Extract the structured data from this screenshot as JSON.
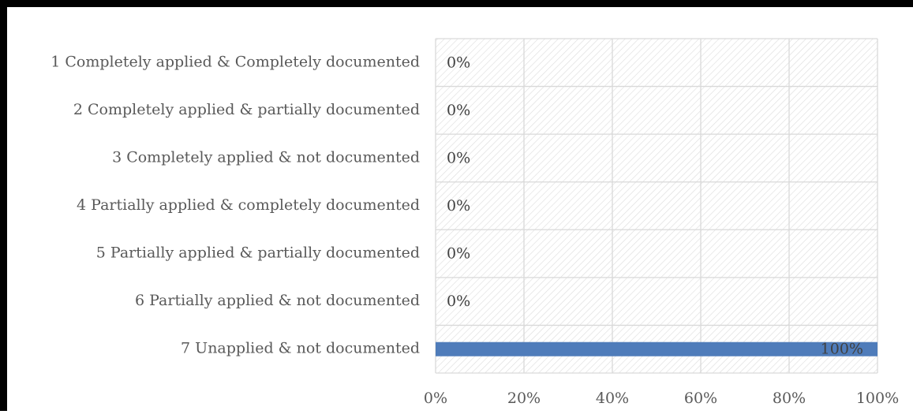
{
  "chart_data": {
    "type": "bar",
    "orientation": "horizontal",
    "categories": [
      "1 Completely applied & Completely documented",
      "2 Completely applied & partially documented",
      "3 Completely applied & not documented",
      "4 Partially applied & completely documented",
      "5 Partially applied & partially documented",
      "6 Partially applied & not documented",
      "7 Unapplied & not documented"
    ],
    "values": [
      0,
      0,
      0,
      0,
      0,
      0,
      1.0
    ],
    "data_labels": [
      "0%",
      "0%",
      "0%",
      "0%",
      "0%",
      "0%",
      "100%"
    ],
    "xlim": [
      0,
      1
    ],
    "x_ticks": [
      0,
      0.2,
      0.4,
      0.6,
      0.8,
      1.0
    ],
    "x_tick_labels": [
      "0%",
      "20%",
      "40%",
      "60%",
      "80%",
      "100%"
    ],
    "grid": true,
    "legend": "none",
    "title": "",
    "xlabel": "",
    "ylabel": "",
    "colors": {
      "bar": "#4f7cba",
      "grid": "#d9d9d9",
      "hatch": "#dcdcdc",
      "text": "#595959",
      "frame": "#000000"
    }
  }
}
